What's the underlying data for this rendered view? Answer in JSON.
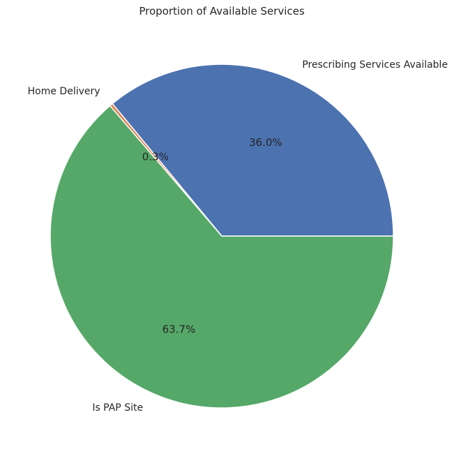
{
  "chart_data": {
    "type": "pie",
    "title": "Proportion of Available Services",
    "categories": [
      "Prescribing Services Available",
      "Home Delivery",
      "Is PAP Site"
    ],
    "values": [
      36.0,
      0.3,
      63.7
    ],
    "value_labels": [
      "36.0%",
      "0.3%",
      "63.7%"
    ],
    "colors": [
      "#4c72b0",
      "#dd8452",
      "#55a868"
    ],
    "start_angle_deg": 0,
    "direction": "counterclockwise",
    "legend": "none"
  }
}
